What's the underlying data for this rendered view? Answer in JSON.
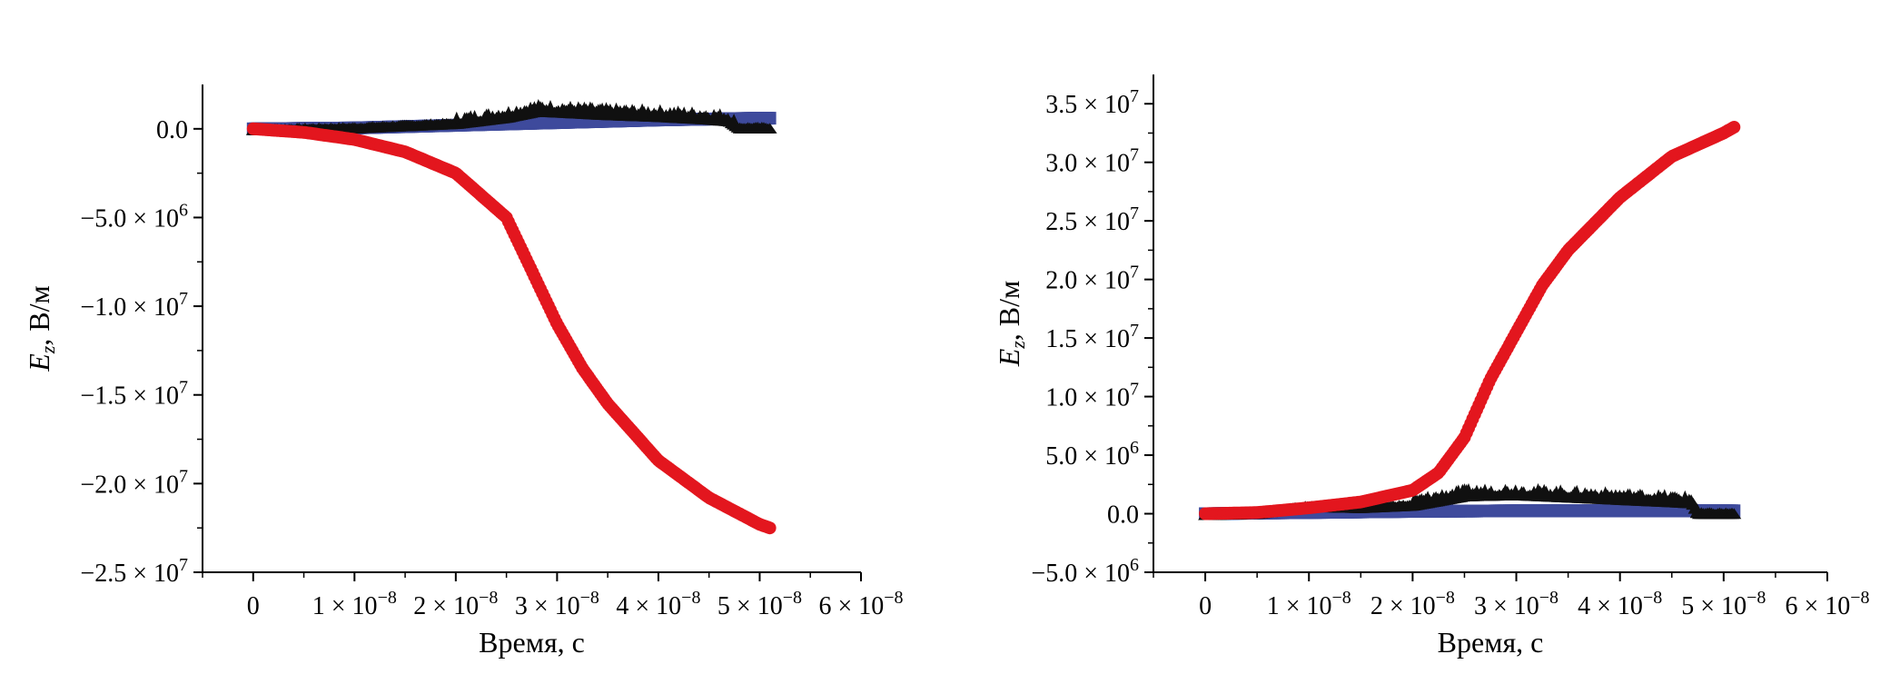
{
  "figure": {
    "colors": {
      "red": "#e3161e",
      "blue": "#3e4a9c",
      "black": "#101010",
      "axis": "#000000"
    }
  },
  "chart_data": [
    {
      "type": "scatter",
      "title": "",
      "xlabel": "Время, с",
      "ylabel_main": "E",
      "ylabel_sub": "z",
      "ylabel_rest": ", В/м",
      "xlim": [
        -5e-09,
        6e-08
      ],
      "ylim": [
        -25000000.0,
        2500000.0
      ],
      "x_ticks": [
        {
          "v": 0,
          "m": "0",
          "e": ""
        },
        {
          "v": 1e-08,
          "m": "1 × 10",
          "e": "−8"
        },
        {
          "v": 2e-08,
          "m": "2 × 10",
          "e": "−8"
        },
        {
          "v": 3e-08,
          "m": "3 × 10",
          "e": "−8"
        },
        {
          "v": 4e-08,
          "m": "4 × 10",
          "e": "−8"
        },
        {
          "v": 5e-08,
          "m": "5 × 10",
          "e": "−8"
        },
        {
          "v": 6e-08,
          "m": "6 × 10",
          "e": "−8"
        }
      ],
      "y_ticks": [
        {
          "v": 0,
          "m": "0.0",
          "e": ""
        },
        {
          "v": -5000000.0,
          "m": "−5.0 × 10",
          "e": "6"
        },
        {
          "v": -10000000.0,
          "m": "−1.0 × 10",
          "e": "7"
        },
        {
          "v": -15000000.0,
          "m": "−1.5 × 10",
          "e": "7"
        },
        {
          "v": -20000000.0,
          "m": "−2.0 × 10",
          "e": "7"
        },
        {
          "v": -25000000.0,
          "m": "−2.5 × 10",
          "e": "7"
        }
      ],
      "series": [
        {
          "color": "#3e4a9c",
          "marker": "square",
          "x": [
            0,
            1e-08,
            2e-08,
            3e-08,
            4e-08,
            5e-08,
            5.1e-08
          ],
          "y": [
            0,
            50000.0,
            200000.0,
            350000.0,
            500000.0,
            600000.0,
            600000.0
          ]
        },
        {
          "color": "#101010",
          "marker": "triangle",
          "x": [
            0,
            1e-08,
            2e-08,
            2.5e-08,
            2.8e-08,
            3e-08,
            3.5e-08,
            4e-08,
            4.5e-08,
            4.7e-08,
            4.8e-08,
            5.1e-08
          ],
          "y": [
            0,
            100000.0,
            350000.0,
            700000.0,
            1050000.0,
            1000000.0,
            850000.0,
            750000.0,
            600000.0,
            500000.0,
            100000.0,
            100000.0
          ]
        },
        {
          "color": "#e3161e",
          "marker": "circle",
          "x": [
            0,
            5e-09,
            1e-08,
            1.5e-08,
            2e-08,
            2.5e-08,
            2.75e-08,
            3e-08,
            3.25e-08,
            3.5e-08,
            4e-08,
            4.5e-08,
            5e-08,
            5.1e-08
          ],
          "y": [
            0,
            -200000.0,
            -600000.0,
            -1300000.0,
            -2500000.0,
            -5000000.0,
            -8000000.0,
            -11000000.0,
            -13500000.0,
            -15500000.0,
            -18700000.0,
            -20800000.0,
            -22300000.0,
            -22500000.0
          ]
        }
      ]
    },
    {
      "type": "scatter",
      "title": "",
      "xlabel": "Время, с",
      "ylabel_main": "E",
      "ylabel_sub": "z",
      "ylabel_rest": ", В/м",
      "xlim": [
        -5e-09,
        6e-08
      ],
      "ylim": [
        -5000000.0,
        37500000.0
      ],
      "x_ticks": [
        {
          "v": 0,
          "m": "0",
          "e": ""
        },
        {
          "v": 1e-08,
          "m": "1 × 10",
          "e": "−8"
        },
        {
          "v": 2e-08,
          "m": "2 × 10",
          "e": "−8"
        },
        {
          "v": 3e-08,
          "m": "3 × 10",
          "e": "−8"
        },
        {
          "v": 4e-08,
          "m": "4 × 10",
          "e": "−8"
        },
        {
          "v": 5e-08,
          "m": "5 × 10",
          "e": "−8"
        },
        {
          "v": 6e-08,
          "m": "6 × 10",
          "e": "−8"
        }
      ],
      "y_ticks": [
        {
          "v": 35000000.0,
          "m": "3.5 × 10",
          "e": "7"
        },
        {
          "v": 30000000.0,
          "m": "3.0 × 10",
          "e": "7"
        },
        {
          "v": 25000000.0,
          "m": "2.5 × 10",
          "e": "7"
        },
        {
          "v": 20000000.0,
          "m": "2.0 × 10",
          "e": "7"
        },
        {
          "v": 15000000.0,
          "m": "1.5 × 10",
          "e": "7"
        },
        {
          "v": 10000000.0,
          "m": "1.0 × 10",
          "e": "7"
        },
        {
          "v": 5000000.0,
          "m": "5.0 × 10",
          "e": "6"
        },
        {
          "v": 0,
          "m": "0.0",
          "e": ""
        },
        {
          "v": -5000000.0,
          "m": "−5.0 × 10",
          "e": "6"
        }
      ],
      "series": [
        {
          "color": "#3e4a9c",
          "marker": "square",
          "x": [
            0,
            1e-08,
            2e-08,
            3e-08,
            4e-08,
            5e-08,
            5.1e-08
          ],
          "y": [
            0,
            100000.0,
            200000.0,
            250000.0,
            250000.0,
            250000.0,
            250000.0
          ]
        },
        {
          "color": "#101010",
          "marker": "triangle",
          "x": [
            0,
            5e-09,
            1e-08,
            1.5e-08,
            2e-08,
            2.5e-08,
            3e-08,
            3.5e-08,
            4e-08,
            4.5e-08,
            4.7e-08,
            4.75e-08,
            5.1e-08
          ],
          "y": [
            0,
            100000.0,
            700000.0,
            600000.0,
            800000.0,
            1600000.0,
            1700000.0,
            1500000.0,
            1300000.0,
            1100000.0,
            1000000.0,
            100000.0,
            100000.0
          ]
        },
        {
          "color": "#e3161e",
          "marker": "circle",
          "x": [
            0,
            5e-09,
            1e-08,
            1.5e-08,
            2e-08,
            2.25e-08,
            2.5e-08,
            2.75e-08,
            3e-08,
            3.25e-08,
            3.5e-08,
            4e-08,
            4.5e-08,
            5e-08,
            5.1e-08
          ],
          "y": [
            0,
            100000.0,
            500000.0,
            1000000.0,
            2000000.0,
            3500000.0,
            6500000.0,
            11500000.0,
            15500000.0,
            19500000.0,
            22500000.0,
            27000000.0,
            30500000.0,
            32500000.0,
            33000000.0
          ]
        }
      ]
    }
  ]
}
